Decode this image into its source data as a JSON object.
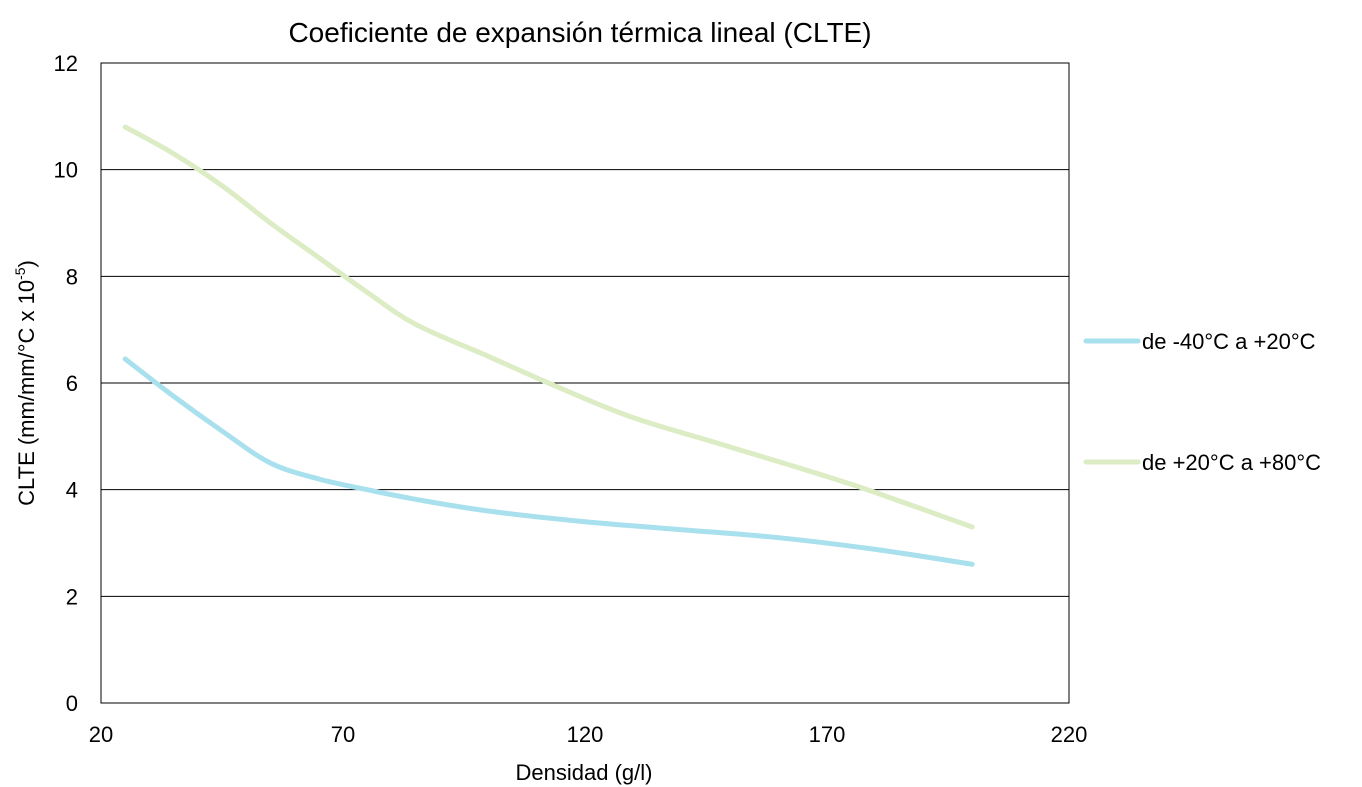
{
  "chart_data": {
    "type": "line",
    "title": "Coeficiente de expansión térmica lineal (CLTE)",
    "xlabel": "Densidad (g/l)",
    "ylabel": "CLTE (mm/mm/°C x 10",
    "ylabel_superscript": "-5",
    "ylabel_suffix": ")",
    "xlim": [
      20,
      220
    ],
    "ylim": [
      0,
      12
    ],
    "xticks": [
      "20",
      "70",
      "120",
      "170",
      "220"
    ],
    "yticks": [
      "0",
      "2",
      "4",
      "6",
      "8",
      "10",
      "12"
    ],
    "grid": "horizontal",
    "legend_position": "right",
    "series": [
      {
        "name": "de -40°C a +20°C",
        "color": "#a9e0ee",
        "x": [
          25,
          35,
          45,
          55,
          65,
          75,
          85,
          100,
          120,
          140,
          160,
          180,
          200
        ],
        "y": [
          6.45,
          5.75,
          5.1,
          4.5,
          4.2,
          4.0,
          3.82,
          3.6,
          3.4,
          3.25,
          3.1,
          2.88,
          2.6
        ]
      },
      {
        "name": "de +20°C a +80°C",
        "color": "#dcecc4",
        "x": [
          25,
          35,
          45,
          55,
          65,
          75,
          85,
          100,
          115,
          130,
          150,
          175,
          200
        ],
        "y": [
          10.8,
          10.3,
          9.7,
          9.0,
          8.35,
          7.7,
          7.1,
          6.5,
          5.9,
          5.35,
          4.8,
          4.1,
          3.3
        ]
      }
    ]
  }
}
